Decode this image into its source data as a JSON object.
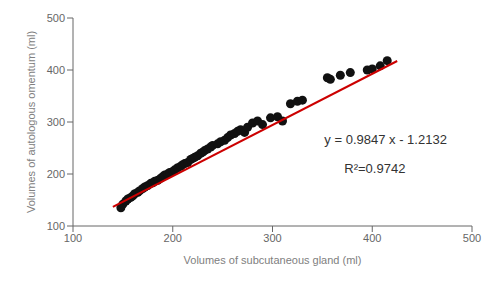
{
  "chart_data": {
    "type": "scatter",
    "xlabel": "Volumes of subcutaneous gland (ml)",
    "ylabel": "Volumes of autologous omentum (ml)",
    "xlim": [
      100,
      500
    ],
    "ylim": [
      100,
      500
    ],
    "xticks": [
      100,
      200,
      300,
      400,
      500
    ],
    "yticks": [
      100,
      200,
      300,
      400,
      500
    ],
    "grid": false,
    "annotations": [
      "y = 0.9847 x - 1.2132",
      "R²=0.9742"
    ],
    "series": [
      {
        "type": "scatter",
        "color": "#111111",
        "x": [
          148,
          150,
          153,
          155,
          158,
          160,
          162,
          165,
          167,
          170,
          172,
          175,
          178,
          180,
          182,
          185,
          188,
          190,
          192,
          195,
          197,
          200,
          202,
          205,
          208,
          210,
          212,
          215,
          218,
          220,
          222,
          225,
          228,
          230,
          232,
          235,
          238,
          240,
          245,
          248,
          252,
          255,
          258,
          262,
          265,
          268,
          272,
          275,
          280,
          285,
          290,
          298,
          305,
          310,
          318,
          325,
          330,
          355,
          358,
          368,
          378,
          395,
          400,
          408,
          415
        ],
        "values": [
          135,
          142,
          148,
          152,
          155,
          158,
          162,
          165,
          168,
          172,
          175,
          178,
          182,
          183,
          186,
          188,
          192,
          195,
          198,
          200,
          203,
          205,
          208,
          212,
          215,
          218,
          220,
          222,
          228,
          230,
          232,
          235,
          240,
          242,
          245,
          248,
          252,
          255,
          258,
          262,
          265,
          270,
          275,
          278,
          282,
          285,
          280,
          290,
          298,
          302,
          295,
          308,
          310,
          302,
          335,
          340,
          342,
          385,
          382,
          390,
          395,
          400,
          402,
          408,
          418
        ]
      },
      {
        "type": "line",
        "color": "#cc0000",
        "x": [
          140,
          425
        ],
        "values": [
          136.6448,
          417.2843
        ]
      }
    ]
  }
}
